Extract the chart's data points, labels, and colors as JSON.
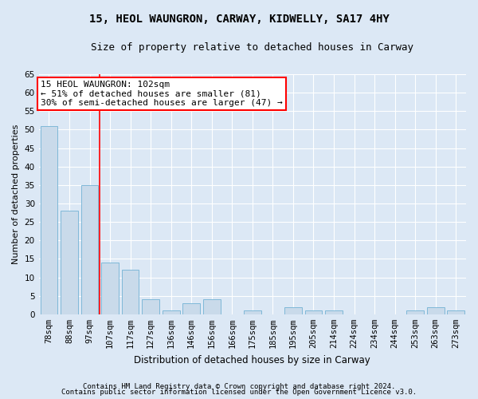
{
  "title": "15, HEOL WAUNGRON, CARWAY, KIDWELLY, SA17 4HY",
  "subtitle": "Size of property relative to detached houses in Carway",
  "xlabel": "Distribution of detached houses by size in Carway",
  "ylabel": "Number of detached properties",
  "categories": [
    "78sqm",
    "88sqm",
    "97sqm",
    "107sqm",
    "117sqm",
    "127sqm",
    "136sqm",
    "146sqm",
    "156sqm",
    "166sqm",
    "175sqm",
    "185sqm",
    "195sqm",
    "205sqm",
    "214sqm",
    "224sqm",
    "234sqm",
    "244sqm",
    "253sqm",
    "263sqm",
    "273sqm"
  ],
  "values": [
    51,
    28,
    35,
    14,
    12,
    4,
    1,
    3,
    4,
    0,
    1,
    0,
    2,
    1,
    1,
    0,
    0,
    0,
    1,
    2,
    1
  ],
  "bar_color": "#c9daea",
  "bar_edge_color": "#7fb8d8",
  "red_line_x": 2,
  "annotation_text": "15 HEOL WAUNGRON: 102sqm\n← 51% of detached houses are smaller (81)\n30% of semi-detached houses are larger (47) →",
  "annotation_box_facecolor": "white",
  "annotation_box_edgecolor": "red",
  "ylim": [
    0,
    65
  ],
  "yticks": [
    0,
    5,
    10,
    15,
    20,
    25,
    30,
    35,
    40,
    45,
    50,
    55,
    60,
    65
  ],
  "background_color": "#dce8f5",
  "title_fontsize": 10,
  "subtitle_fontsize": 9,
  "xlabel_fontsize": 8.5,
  "ylabel_fontsize": 8,
  "tick_fontsize": 7.5,
  "annotation_fontsize": 8,
  "footer_fontsize": 6.5,
  "footer_line1": "Contains HM Land Registry data © Crown copyright and database right 2024.",
  "footer_line2": "Contains public sector information licensed under the Open Government Licence v3.0."
}
